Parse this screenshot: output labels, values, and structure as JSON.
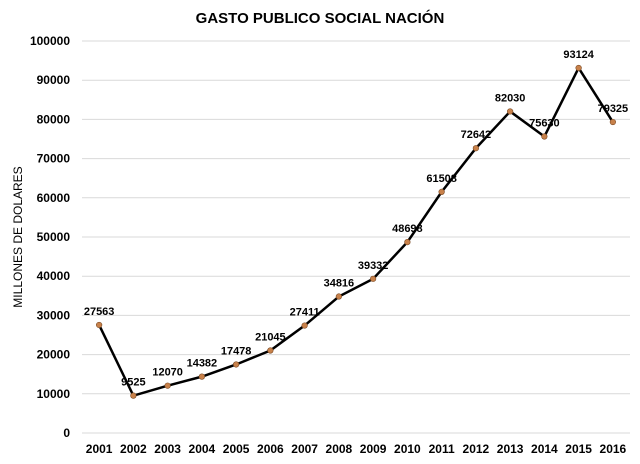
{
  "chart_data": {
    "type": "line",
    "title": "GASTO PUBLICO SOCIAL NACIÓN",
    "xlabel": "",
    "ylabel": "MILLONES DE DOLARES",
    "ylim": [
      0,
      100000
    ],
    "yticks": [
      0,
      10000,
      20000,
      30000,
      40000,
      50000,
      60000,
      70000,
      80000,
      90000,
      100000
    ],
    "categories": [
      "2001",
      "2002",
      "2003",
      "2004",
      "2005",
      "2006",
      "2007",
      "2008",
      "2009",
      "2010",
      "2011",
      "2012",
      "2013",
      "2014",
      "2015",
      "2016"
    ],
    "values": [
      27563,
      9525,
      12070,
      14382,
      17478,
      21045,
      27411,
      34816,
      39332,
      48698,
      61508,
      72642,
      82030,
      75630,
      93124,
      79325
    ],
    "grid": true,
    "legend": "none",
    "line_color": "#000000",
    "marker_color": "#c8814a"
  }
}
